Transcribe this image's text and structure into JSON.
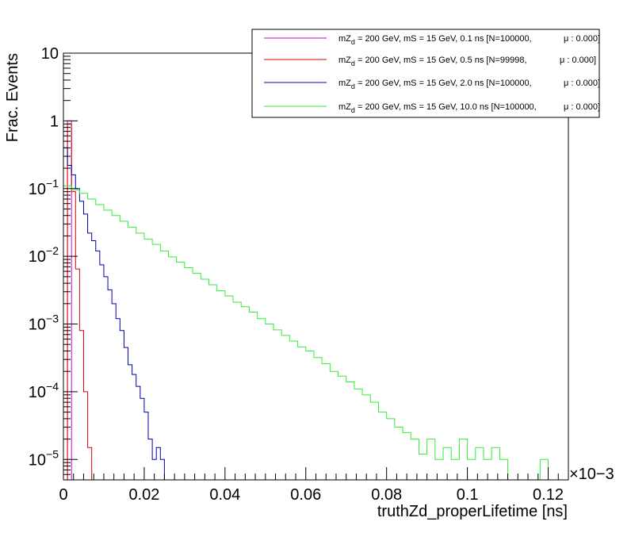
{
  "chart_data": {
    "type": "line",
    "step_histogram": true,
    "xlabel": "truthZd_properLifetime [ns]",
    "ylabel": "Frac. Events",
    "x_multiplier": "×10−3",
    "x_scale_exponent": -3,
    "xlim": [
      0,
      0.125
    ],
    "ylim": [
      5e-06,
      10
    ],
    "y_scale": "log",
    "x_ticks": [
      0,
      0.02,
      0.04,
      0.06,
      0.08,
      0.1,
      0.12
    ],
    "x_tick_labels": [
      "0",
      "0.02",
      "0.04",
      "0.06",
      "0.08",
      "0.1",
      "0.12"
    ],
    "y_ticks": [
      {
        "value": 1e-05,
        "base": "10",
        "exp": "−5"
      },
      {
        "value": 0.0001,
        "base": "10",
        "exp": "−4"
      },
      {
        "value": 0.001,
        "base": "10",
        "exp": "−3"
      },
      {
        "value": 0.01,
        "base": "10",
        "exp": "−2"
      },
      {
        "value": 0.1,
        "base": "10",
        "exp": "−1"
      },
      {
        "value": 1,
        "base": "1",
        "exp": ""
      },
      {
        "value": 10,
        "base": "10",
        "exp": ""
      }
    ],
    "grid": false,
    "legend_position": "top-right",
    "series": [
      {
        "label_pre": "mZ",
        "label_sub": "d",
        "label_post": " = 200 GeV, mS = 15 GeV, 0.1 ns [N=100000,",
        "label_mu": "μ : 0.000]",
        "color": "#cc00cc",
        "x": [
          0.001
        ],
        "values": [
          1.0
        ]
      },
      {
        "label_pre": "mZ",
        "label_sub": "d",
        "label_post": " = 200 GeV, mS = 15 GeV, 0.5 ns [N=99998,",
        "label_mu": "μ : 0.000]",
        "color": "#dd0000",
        "x": [
          0.001,
          0.002,
          0.003,
          0.004,
          0.005,
          0.006
        ],
        "values": [
          0.9,
          0.09,
          0.0065,
          0.0008,
          0.0001,
          1.5e-05
        ]
      },
      {
        "label_pre": "mZ",
        "label_sub": "d",
        "label_post": " = 200 GeV, mS = 15 GeV, 2.0 ns [N=100000,",
        "label_mu": "μ : 0.000]",
        "color": "#0000aa",
        "x": [
          0.0,
          0.001,
          0.002,
          0.003,
          0.004,
          0.005,
          0.006,
          0.007,
          0.008,
          0.009,
          0.01,
          0.011,
          0.012,
          0.013,
          0.014,
          0.015,
          0.016,
          0.017,
          0.018,
          0.019,
          0.02,
          0.021,
          0.022,
          0.023,
          0.024
        ],
        "values": [
          0.4,
          0.22,
          0.16,
          0.1,
          0.065,
          0.042,
          0.022,
          0.017,
          0.012,
          0.0075,
          0.005,
          0.0032,
          0.002,
          0.0012,
          0.0008,
          0.00045,
          0.00025,
          0.00018,
          0.00012,
          8e-05,
          5e-05,
          2e-05,
          1e-05,
          1.5e-05,
          1e-05
        ]
      },
      {
        "label_pre": "mZ",
        "label_sub": "d",
        "label_post": " = 200 GeV, mS = 15 GeV, 10.0 ns [N=100000,",
        "label_mu": "μ : 0.000]",
        "color": "#33ee33",
        "x": [
          0.0,
          0.002,
          0.004,
          0.006,
          0.008,
          0.01,
          0.012,
          0.014,
          0.016,
          0.018,
          0.02,
          0.022,
          0.024,
          0.026,
          0.028,
          0.03,
          0.032,
          0.034,
          0.036,
          0.038,
          0.04,
          0.042,
          0.044,
          0.046,
          0.048,
          0.05,
          0.052,
          0.054,
          0.056,
          0.058,
          0.06,
          0.062,
          0.064,
          0.066,
          0.068,
          0.07,
          0.072,
          0.074,
          0.076,
          0.078,
          0.08,
          0.082,
          0.084,
          0.086,
          0.088,
          0.09,
          0.092,
          0.094,
          0.096,
          0.098,
          0.1,
          0.102,
          0.104,
          0.106,
          0.108,
          0.11,
          0.112,
          0.114,
          0.116,
          0.118,
          0.12
        ],
        "values": [
          0.11,
          0.095,
          0.085,
          0.07,
          0.058,
          0.048,
          0.04,
          0.033,
          0.027,
          0.022,
          0.018,
          0.015,
          0.012,
          0.0098,
          0.0082,
          0.0068,
          0.0056,
          0.0046,
          0.0038,
          0.0031,
          0.0026,
          0.0021,
          0.0018,
          0.0015,
          0.0012,
          0.001,
          0.00082,
          0.00068,
          0.00056,
          0.00046,
          0.0004,
          0.00032,
          0.00026,
          0.0002,
          0.00017,
          0.00014,
          0.00011,
          9e-05,
          7e-05,
          5e-05,
          4e-05,
          3e-05,
          2.5e-05,
          2e-05,
          1.2e-05,
          2e-05,
          1e-05,
          1.5e-05,
          1e-05,
          2e-05,
          1e-05,
          1.5e-05,
          1e-05,
          1.5e-05,
          1e-05,
          5e-06,
          5e-06,
          5e-06,
          5e-06,
          1e-05,
          5e-06
        ]
      }
    ]
  }
}
